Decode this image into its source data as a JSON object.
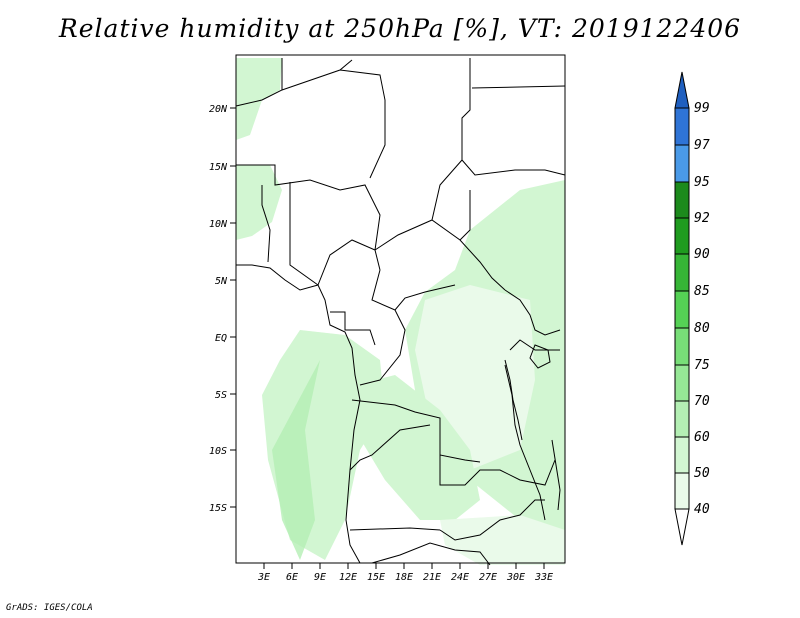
{
  "title": "Relative humidity at 250hPa [%], VT: 2019122406",
  "credit": "GrADS: IGES/COLA",
  "map": {
    "lat_ticks": [
      "20N",
      "15N",
      "10N",
      "5N",
      "EQ",
      "5S",
      "10S",
      "15S"
    ],
    "lon_ticks": [
      "3E",
      "6E",
      "9E",
      "12E",
      "15E",
      "18E",
      "21E",
      "24E",
      "27E",
      "30E",
      "33E"
    ]
  },
  "colorbar": {
    "levels": [
      "40",
      "50",
      "60",
      "70",
      "75",
      "80",
      "85",
      "90",
      "92",
      "95",
      "97",
      "99"
    ],
    "colors": [
      "#ffffff",
      "#eafaea",
      "#d2f6d2",
      "#b4efb4",
      "#96e796",
      "#78de78",
      "#55d155",
      "#36b536",
      "#1f9b1f",
      "#1c8a1c",
      "#4a9ae8",
      "#2f74d6",
      "#1f5fbf"
    ]
  }
}
